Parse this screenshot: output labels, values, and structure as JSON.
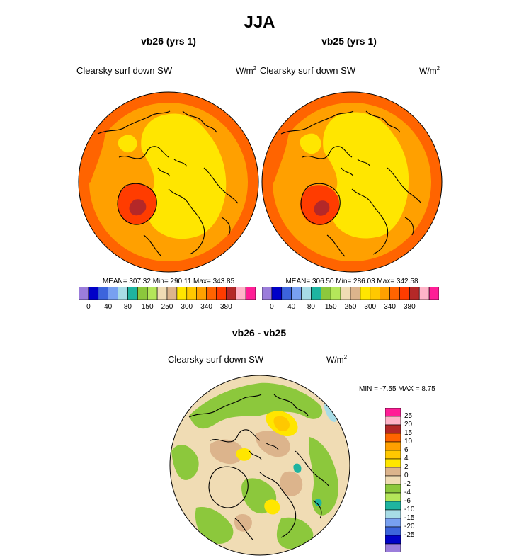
{
  "title": "JJA",
  "colors": {
    "abs_palette": [
      "#9b7ddb",
      "#0000c8",
      "#3c64dc",
      "#78a0f0",
      "#a8dce6",
      "#1eb4a0",
      "#8cc83c",
      "#b4e65a",
      "#f0dcb4",
      "#dcb48c",
      "#ffe600",
      "#ffc800",
      "#ffa000",
      "#ff6400",
      "#ff3c00",
      "#b42828",
      "#ffb4c8",
      "#ff1e96"
    ],
    "diff_palette": [
      "#9b7ddb",
      "#0000c8",
      "#3c64dc",
      "#78a0f0",
      "#a8dce6",
      "#1eb4a0",
      "#b4e65a",
      "#8cc83c",
      "#f0dcb4",
      "#dcb48c",
      "#ffe600",
      "#ffc800",
      "#ffa000",
      "#ff6400",
      "#b42828",
      "#ffb4c8",
      "#ff1e96"
    ],
    "coast": "#000000",
    "zone_outer": "#ff6400",
    "zone_mid": "#ffa000",
    "zone_inner": "#ffe600",
    "zone_greenland": "#ff3c00",
    "zone_greenland_core": "#b42828",
    "diff_base": "#f0dcb4",
    "diff_green": "#8cc83c",
    "diff_tan": "#dcb48c",
    "diff_yellow": "#ffe600",
    "diff_orange": "#ffc800",
    "diff_cyan": "#a8dce6",
    "diff_teal": "#1eb4a0"
  },
  "panels": [
    {
      "title": "vb26 (yrs 1)",
      "variable": "Clearsky surf down SW",
      "units": "W/m",
      "units_sup": "2",
      "stats": "MEAN= 307.32  Min= 290.11  Max= 343.85",
      "colorbar_labels": [
        "0",
        "40",
        "80",
        "150",
        "250",
        "300",
        "340",
        "380"
      ]
    },
    {
      "title": "vb25 (yrs 1)",
      "variable": "Clearsky surf down SW",
      "units": "W/m",
      "units_sup": "2",
      "stats": "MEAN= 306.50  Min= 286.03  Max= 342.58",
      "colorbar_labels": [
        "0",
        "40",
        "80",
        "150",
        "250",
        "300",
        "340",
        "380"
      ]
    }
  ],
  "diff_panel": {
    "title": "vb26 - vb25",
    "variable": "Clearsky surf down SW",
    "units": "W/m",
    "units_sup": "2",
    "stats": "MIN =  -7.55 MAX =   8.75",
    "colorbar_labels": [
      "25",
      "20",
      "15",
      "10",
      "6",
      "4",
      "2",
      "0",
      "-2",
      "-4",
      "-6",
      "-10",
      "-15",
      "-20",
      "-25"
    ]
  }
}
